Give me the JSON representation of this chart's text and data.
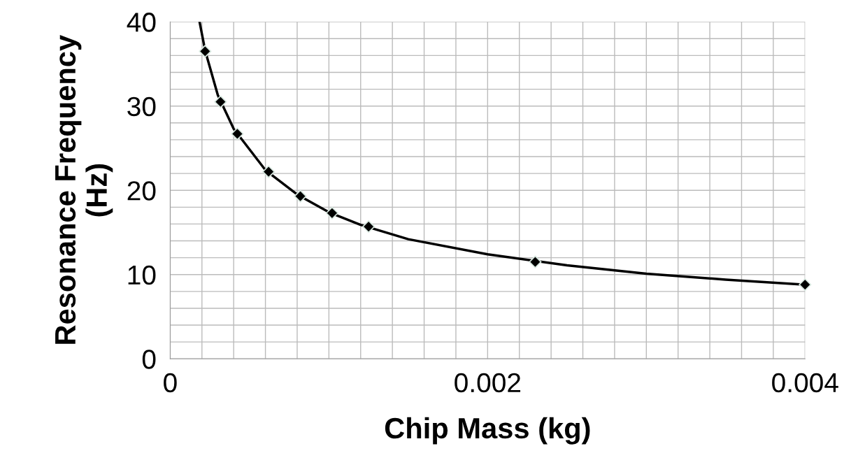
{
  "chart_data": {
    "type": "scatter",
    "xlabel": "Chip Mass (kg)",
    "ylabel": "Resonance Frequency\n(Hz)",
    "x": [
      0.00022,
      0.000317,
      0.000423,
      0.00062,
      0.00082,
      0.00102,
      0.00125,
      0.0023,
      0.004
    ],
    "series": [
      {
        "color": "#000000",
        "values": [
          36.5,
          30.5,
          26.7,
          22.2,
          19.3,
          17.3,
          15.7,
          11.5,
          8.8
        ],
        "marker": "diamond"
      },
      {
        "type": "line",
        "color": "#000000",
        "marker": "none",
        "line_style": "solid",
        "x": [
          0.000185,
          0.00022,
          0.0003,
          0.0004,
          0.0006,
          0.0008,
          0.001,
          0.0012,
          0.0015,
          0.002,
          0.0025,
          0.003,
          0.0035,
          0.004
        ],
        "values": [
          40,
          36.6,
          31.3,
          27.3,
          22.4,
          19.5,
          17.4,
          15.9,
          14.2,
          12.4,
          11.1,
          10.1,
          9.4,
          8.8
        ]
      }
    ],
    "xlim": [
      0,
      0.004
    ],
    "ylim": [
      0,
      40
    ],
    "xticks": [
      0,
      {
        "value": 0.0002,
        "label": null
      },
      {
        "value": 0.0004,
        "label": null
      },
      {
        "value": 0.0006,
        "label": null
      },
      {
        "value": 0.0008,
        "label": null
      },
      {
        "value": 0.001,
        "label": null
      },
      {
        "value": 0.0012,
        "label": null
      },
      {
        "value": 0.0014,
        "label": null
      },
      {
        "value": 0.0016,
        "label": null
      },
      {
        "value": 0.0018,
        "label": null
      },
      0.002,
      {
        "value": 0.0022,
        "label": null
      },
      {
        "value": 0.0024,
        "label": null
      },
      {
        "value": 0.0026,
        "label": null
      },
      {
        "value": 0.0028,
        "label": null
      },
      {
        "value": 0.003,
        "label": null
      },
      {
        "value": 0.0032,
        "label": null
      },
      {
        "value": 0.0034,
        "label": null
      },
      {
        "value": 0.0036,
        "label": null
      },
      {
        "value": 0.0038,
        "label": null
      },
      0.004
    ],
    "yticks": [
      0,
      {
        "value": 2,
        "label": null
      },
      {
        "value": 4,
        "label": null
      },
      {
        "value": 6,
        "label": null
      },
      {
        "value": 8,
        "label": null
      },
      10,
      {
        "value": 12,
        "label": null
      },
      {
        "value": 14,
        "label": null
      },
      {
        "value": 16,
        "label": null
      },
      {
        "value": 18,
        "label": null
      },
      20,
      {
        "value": 22,
        "label": null
      },
      {
        "value": 24,
        "label": null
      },
      {
        "value": 26,
        "label": null
      },
      {
        "value": 28,
        "label": null
      },
      30,
      {
        "value": 32,
        "label": null
      },
      {
        "value": 34,
        "label": null
      },
      {
        "value": 36,
        "label": null
      },
      {
        "value": 38,
        "label": null
      },
      40
    ],
    "grid": true,
    "legend": false
  }
}
